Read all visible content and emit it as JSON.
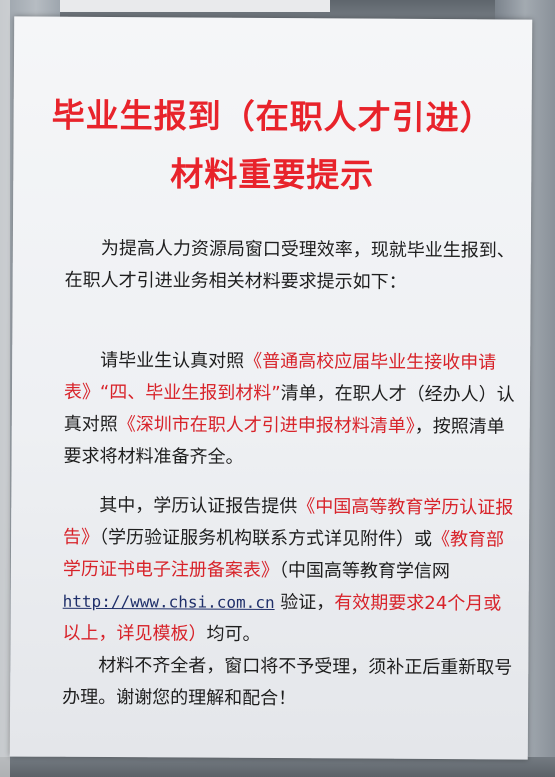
{
  "notice": {
    "title_line1": "毕业生报到（在职人才引进）",
    "title_line2": "材料重要提示",
    "para1": "为提高人力资源局窗口受理效率，现就毕业生报到、在职人才引进业务相关材料要求提示如下：",
    "para2": {
      "t1": "请毕业生认真对照",
      "r1": "《普通高校应届毕业生接收申请表》“四、毕业生报到材料”",
      "t2": "清单，在职人才（经办人）认真对照",
      "r2": "《深圳市在职人才引进申报材料清单》",
      "t3": "，按照清单要求将材料准备齐全。"
    },
    "para3": {
      "t1": "其中，学历认证报告提供",
      "r1": "《中国高等教育学历认证报告》",
      "t2": "（学历验证服务机构联系方式详见附件）或",
      "r2": "《教育部学历证书电子注册备案表》",
      "t3": "（中国高等教育学信网 ",
      "url": "http://www.chsi.com.cn",
      "t4": " 验证，",
      "r3": "有效期要求24个月或以上，详见模板）",
      "t5": "均可。"
    },
    "para4": "材料不齐全者，窗口将不予受理，须补正后重新取号办理。谢谢您的理解和配合！"
  },
  "colors": {
    "red_text": "#d8232a",
    "title_red": "#e8232b",
    "body_text": "#1e1e1e",
    "paper": "#f1f2f5"
  }
}
